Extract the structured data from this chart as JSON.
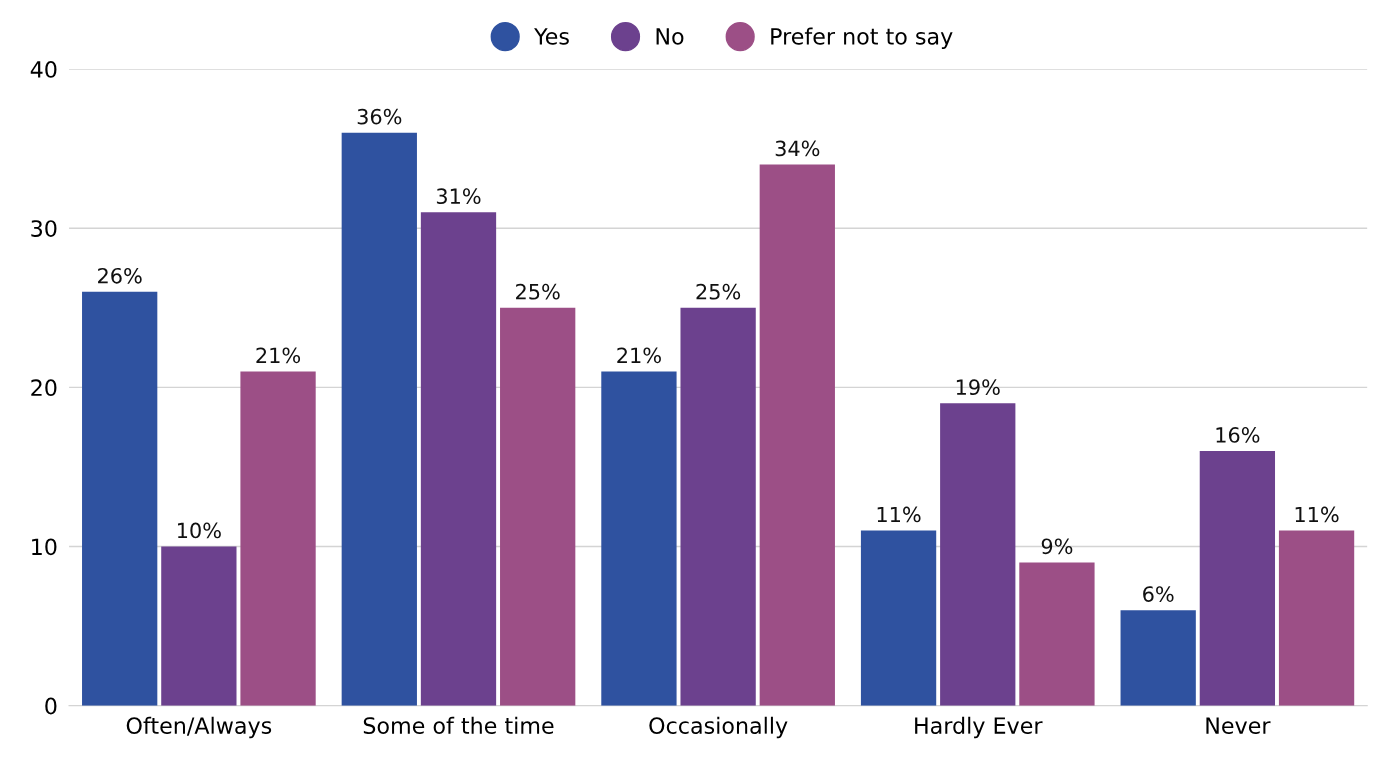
{
  "chart_data": {
    "type": "bar",
    "categories": [
      "Often/Always",
      "Some of the time",
      "Occasionally",
      "Hardly Ever",
      "Never"
    ],
    "series": [
      {
        "name": "Yes",
        "color": "#2f52a0",
        "values": [
          26,
          36,
          21,
          11,
          6
        ],
        "value_labels": [
          "26%",
          "36%",
          "21%",
          "11%",
          "6%"
        ]
      },
      {
        "name": "No",
        "color": "#6c418e",
        "values": [
          10,
          31,
          25,
          19,
          16
        ],
        "value_labels": [
          "10%",
          "31%",
          "25%",
          "19%",
          "16%"
        ]
      },
      {
        "name": "Prefer not to say",
        "color": "#9c4f86",
        "values": [
          21,
          25,
          34,
          9,
          11
        ],
        "value_labels": [
          "21%",
          "25%",
          "34%",
          "9%",
          "11%"
        ]
      }
    ],
    "ylim": [
      0,
      40
    ],
    "yticks": [
      0,
      10,
      20,
      30,
      40
    ],
    "grid": "y",
    "legend": "top"
  }
}
